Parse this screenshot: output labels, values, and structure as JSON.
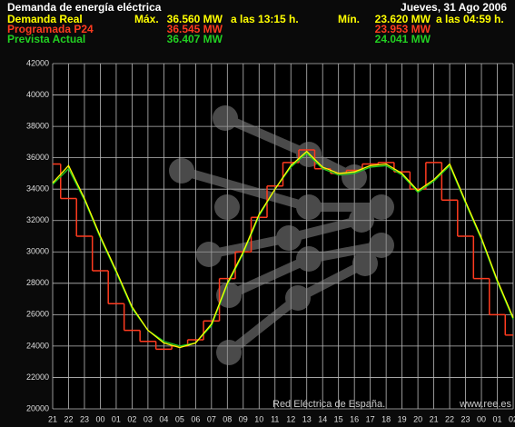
{
  "chart_data": {
    "type": "line",
    "title": "Demanda de energía eléctrica",
    "date": "Jueves, 31 Ago 2006",
    "max_word": "Máx.",
    "min_word": "Mín.",
    "watermark": "Red Eléctrica de España.",
    "website": "www.ree.es",
    "categories": [
      "21",
      "22",
      "23",
      "00",
      "01",
      "02",
      "03",
      "04",
      "05",
      "06",
      "07",
      "08",
      "09",
      "10",
      "11",
      "12",
      "13",
      "14",
      "15",
      "16",
      "17",
      "18",
      "19",
      "20",
      "21",
      "22",
      "23",
      "00",
      "01",
      "02"
    ],
    "ylim": [
      20000,
      42000
    ],
    "yticks": [
      20000,
      22000,
      24000,
      26000,
      28000,
      30000,
      32000,
      34000,
      36000,
      38000,
      40000,
      42000
    ],
    "grid": true,
    "series": [
      {
        "name": "Demanda Real",
        "color": "#ffff00",
        "style": "line",
        "max_label": "36.560 MW",
        "max_time": "a las 13:15 h.",
        "min_label": "23.620 MW",
        "min_time": "a las 04:59 h.",
        "values": [
          34400,
          35500,
          33400,
          31000,
          28800,
          26500,
          25000,
          24200,
          23900,
          24200,
          25400,
          28000,
          30000,
          32400,
          34000,
          35500,
          36400,
          35400,
          35000,
          35100,
          35500,
          35600,
          35000,
          33900,
          34600,
          35600,
          33200,
          30900,
          28200,
          25800
        ]
      },
      {
        "name": "Programada P24",
        "color": "#ff3b1f",
        "style": "step",
        "max_label": "36.545 MW",
        "min_label": "23.953 MW",
        "values": [
          35600,
          33400,
          31000,
          28800,
          26700,
          25000,
          24300,
          23800,
          24000,
          24400,
          25600,
          28300,
          30000,
          32200,
          34200,
          35700,
          36500,
          35300,
          35000,
          35200,
          35600,
          35700,
          35100,
          34000,
          35700,
          33300,
          31000,
          28300,
          26000,
          24700
        ]
      },
      {
        "name": "Prevista Actual",
        "color": "#22d022",
        "style": "line",
        "max_label": "36.407 MW",
        "min_label": "24.041 MW",
        "values": [
          34300,
          35300,
          33300,
          30900,
          28700,
          26400,
          25000,
          24300,
          24000,
          24200,
          25300,
          27900,
          29900,
          32300,
          34000,
          35400,
          36300,
          35300,
          34900,
          35000,
          35400,
          35500,
          34900,
          33800,
          34500,
          35500,
          33100,
          30800,
          28100,
          25700
        ]
      }
    ]
  }
}
